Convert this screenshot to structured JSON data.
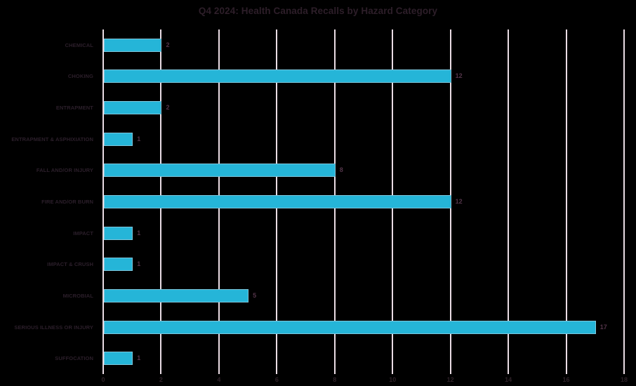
{
  "title": "Q4 2024: Health Canada Recalls by Hazard Category",
  "colors": {
    "background": "#000000",
    "bar_fill": "#25b5d8",
    "bar_edge": "#e9dbe3",
    "gridline": "#eadce4",
    "title_text": "#2d1e29",
    "category_text": "#2c1f2b",
    "value_text": "#533449",
    "tick_text": "#2e2128"
  },
  "chart_data": {
    "type": "bar",
    "orientation": "horizontal",
    "title": "Q4 2024: Health Canada Recalls by Hazard Category",
    "categories": [
      "CHEMICAL",
      "CHOKING",
      "ENTRAPMENT",
      "ENTRAPMENT & ASPHIXIATION",
      "FALL AND/OR INJURY",
      "FIRE AND/OR BURN",
      "IMPACT",
      "IMPACT & CRUSH",
      "MICROBIAL",
      "SERIOUS ILLNESS OR INJURY",
      "SUFFOCATION"
    ],
    "values": [
      2,
      12,
      2,
      1,
      8,
      12,
      1,
      1,
      5,
      17,
      1
    ],
    "xlabel": "",
    "ylabel": "",
    "xlim": [
      0,
      18
    ],
    "xticks": [
      0,
      2,
      4,
      6,
      8,
      10,
      12,
      14,
      16,
      18
    ],
    "grid": "vertical",
    "legend": "none",
    "value_labels": true
  }
}
